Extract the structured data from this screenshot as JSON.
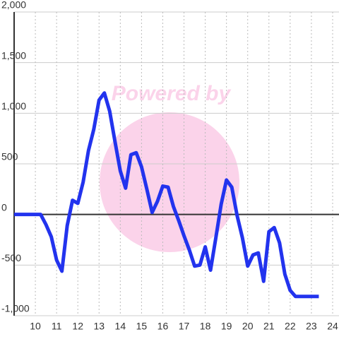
{
  "chart_data": {
    "type": "line",
    "watermark": "Powered by",
    "x": [
      9,
      10.25,
      10.5,
      10.75,
      11,
      11.25,
      11.5,
      11.75,
      12,
      12.25,
      12.5,
      12.75,
      13,
      13.25,
      13.5,
      13.75,
      14,
      14.25,
      14.5,
      14.75,
      15,
      15.25,
      15.5,
      15.75,
      16,
      16.25,
      16.5,
      16.75,
      17,
      17.25,
      17.5,
      17.75,
      18,
      18.25,
      18.5,
      18.75,
      19,
      19.25,
      19.5,
      19.75,
      20,
      20.25,
      20.5,
      20.75,
      21,
      21.25,
      21.5,
      21.75,
      22,
      22.25,
      23.35
    ],
    "series": [
      {
        "color": "#2233ee",
        "values": [
          0,
          0,
          -100,
          -220,
          -450,
          -560,
          -110,
          140,
          110,
          320,
          630,
          840,
          1130,
          1200,
          1020,
          720,
          430,
          260,
          590,
          610,
          470,
          250,
          20,
          130,
          280,
          270,
          80,
          -60,
          -210,
          -350,
          -510,
          -500,
          -320,
          -550,
          -230,
          100,
          340,
          270,
          -10,
          -230,
          -510,
          -400,
          -380,
          -660,
          -170,
          -130,
          -280,
          -590,
          -750,
          -810,
          -810
        ]
      }
    ],
    "xlim": [
      9,
      24.3
    ],
    "xticks": [
      10,
      11,
      12,
      13,
      14,
      15,
      16,
      17,
      18,
      19,
      20,
      21,
      22,
      23,
      24
    ],
    "ylim": [
      -1000,
      2000
    ],
    "yticks": [
      {
        "value": -1000,
        "label": "-1,000"
      },
      -500,
      0,
      500,
      {
        "value": 1000,
        "label": "1,000"
      },
      {
        "value": 1500,
        "label": "1,500"
      },
      {
        "value": 2000,
        "label": "2,000"
      }
    ],
    "grid": true
  }
}
